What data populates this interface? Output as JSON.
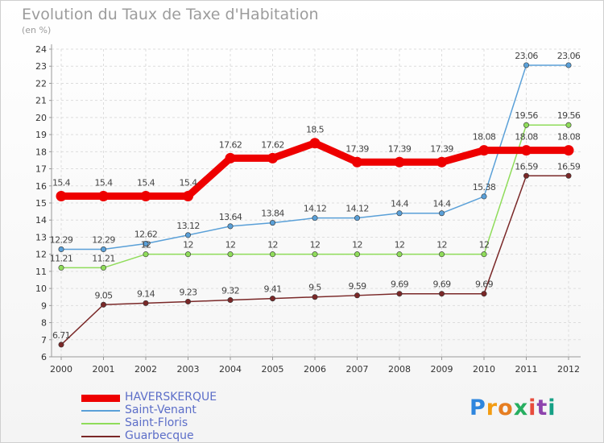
{
  "chart_data": {
    "type": "line",
    "title": "Evolution du Taux de Taxe d'Habitation",
    "subtitle": "(en %)",
    "x": [
      "2000",
      "2001",
      "2002",
      "2003",
      "2004",
      "2005",
      "2006",
      "2007",
      "2008",
      "2009",
      "2010",
      "2011",
      "2012"
    ],
    "ylim": [
      6,
      24
    ],
    "yticks": [
      6,
      7,
      8,
      9,
      10,
      11,
      12,
      13,
      14,
      15,
      16,
      17,
      18,
      19,
      20,
      21,
      22,
      23,
      24
    ],
    "grid": true,
    "legend_position": "bottom-left",
    "series": [
      {
        "name": "HAVERSKERQUE",
        "color": "#ee0000",
        "values": [
          15.4,
          15.4,
          15.4,
          15.4,
          17.62,
          17.62,
          18.5,
          17.39,
          17.39,
          17.39,
          18.08,
          18.08,
          18.08
        ],
        "labels": [
          "15.4",
          "15.4",
          "15.4",
          "15.4",
          "17.62",
          "17.62",
          "18.5",
          "17.39",
          "17.39",
          "17.39",
          "18.08",
          "18.08",
          "18.08"
        ]
      },
      {
        "name": "Saint-Venant",
        "color": "#5aa0d8",
        "values": [
          12.29,
          12.29,
          12.62,
          13.12,
          13.64,
          13.84,
          14.12,
          14.12,
          14.4,
          14.4,
          15.38,
          23.06,
          23.06
        ],
        "labels": [
          "12.29",
          "12.29",
          "12.62",
          "13.12",
          "13.64",
          "13.84",
          "14.12",
          "14.12",
          "14.4",
          "14.4",
          "15.38",
          "23.06",
          "23.06"
        ]
      },
      {
        "name": "Saint-Floris",
        "color": "#8fdc5a",
        "values": [
          11.21,
          11.21,
          12,
          12,
          12,
          12,
          12,
          12,
          12,
          12,
          12,
          19.56,
          19.56
        ],
        "labels": [
          "11.21",
          "11.21",
          "12",
          "12",
          "12",
          "12",
          "12",
          "12",
          "12",
          "12",
          "12",
          "19.56",
          "19.56"
        ]
      },
      {
        "name": "Guarbecque",
        "color": "#7a2828",
        "values": [
          6.71,
          9.05,
          9.14,
          9.23,
          9.32,
          9.41,
          9.5,
          9.59,
          9.69,
          9.69,
          9.69,
          16.59,
          16.59
        ],
        "labels": [
          "6.71",
          "9.05",
          "9.14",
          "9.23",
          "9.32",
          "9.41",
          "9.5",
          "9.59",
          "9.69",
          "9.69",
          "9.69",
          "16.59",
          "16.59"
        ]
      }
    ]
  },
  "logo": {
    "letters": [
      "P",
      "r",
      "o",
      "x",
      "i",
      "t",
      "i"
    ],
    "colors": [
      "#2e86de",
      "#f39c12",
      "#e67e22",
      "#27ae60",
      "#e74c3c",
      "#8e44ad",
      "#16a085"
    ]
  }
}
